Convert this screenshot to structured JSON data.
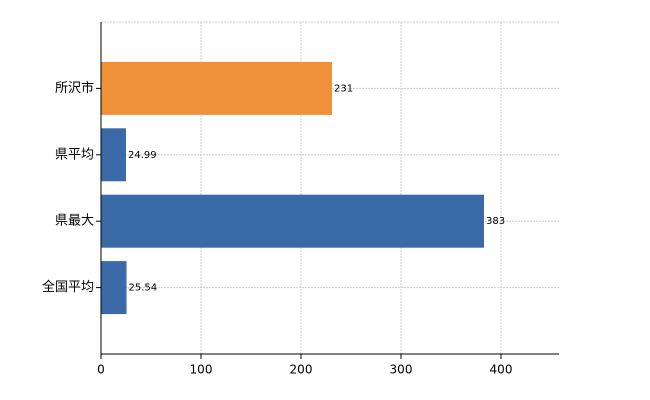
{
  "chart_data": {
    "type": "bar",
    "orientation": "horizontal",
    "categories": [
      "所沢市",
      "県平均",
      "県最大",
      "全国平均"
    ],
    "values": [
      231,
      24.99,
      383,
      25.54
    ],
    "colors": [
      "#f0913a",
      "#3b6aa9",
      "#3b6aa9",
      "#3b6aa9"
    ],
    "xlim": [
      0,
      458
    ],
    "xticks": [
      0,
      100,
      200,
      300,
      400
    ],
    "grid": true
  }
}
